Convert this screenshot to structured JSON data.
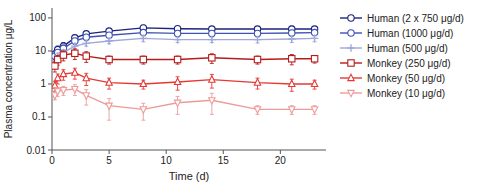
{
  "chart_data": {
    "type": "line",
    "x_label": "Time (d)",
    "y_label": "Plasma concentration μg/L",
    "x": [
      0.25,
      0.5,
      1,
      2,
      3,
      5,
      8,
      11,
      14,
      18,
      21,
      23
    ],
    "series": [
      {
        "name": "Human (2 x 750 μg/d)",
        "color": "#1a237e",
        "marker": "circle",
        "values": [
          8.0,
          11.0,
          14.0,
          25.0,
          33.0,
          40.0,
          50.0,
          47.0,
          46.0,
          46.0,
          46.0,
          46.0
        ],
        "error_lo": [
          2.0,
          3.0,
          4.0,
          5.0,
          6.0,
          7.0,
          10.0,
          8.0,
          8.0,
          9.0,
          10.0,
          9.0
        ],
        "error_hi": [
          2.0,
          3.0,
          4.0,
          5.0,
          6.0,
          7.0,
          10.0,
          8.0,
          8.0,
          9.0,
          10.0,
          9.0
        ]
      },
      {
        "name": "Human (1000 μg/d)",
        "color": "#3f51b5",
        "marker": "circle",
        "values": [
          7.0,
          9.0,
          12.0,
          20.0,
          26.0,
          30.0,
          36.0,
          34.0,
          34.0,
          34.0,
          35.0,
          36.0
        ],
        "error_lo": [
          1.5,
          2.0,
          3.0,
          4.0,
          5.0,
          6.0,
          7.0,
          6.0,
          6.0,
          7.0,
          7.0,
          7.0
        ],
        "error_hi": [
          1.5,
          2.0,
          3.0,
          4.0,
          5.0,
          6.0,
          7.0,
          6.0,
          6.0,
          7.0,
          7.0,
          7.0
        ]
      },
      {
        "name": "Human (500 μg/d)",
        "color": "#9fa8da",
        "marker": "plus",
        "values": [
          5.0,
          7.0,
          9.0,
          14.0,
          17.0,
          20.0,
          24.0,
          22.0,
          22.0,
          22.0,
          23.0,
          24.0
        ],
        "error_lo": [
          1.0,
          1.5,
          2.0,
          2.5,
          3.0,
          3.5,
          5.0,
          4.0,
          4.0,
          4.5,
          5.0,
          5.0
        ],
        "error_hi": [
          1.0,
          1.5,
          2.0,
          2.5,
          3.0,
          3.5,
          5.0,
          4.0,
          4.0,
          4.5,
          5.0,
          5.0
        ]
      },
      {
        "name": "Monkey (250 μg/d)",
        "color": "#b71c1c",
        "marker": "square",
        "values": [
          3.5,
          5.5,
          7.5,
          8.5,
          7.0,
          5.5,
          5.5,
          5.5,
          6.2,
          5.5,
          5.8,
          5.8
        ],
        "error_lo": [
          1.2,
          1.8,
          2.5,
          3.0,
          2.5,
          1.5,
          1.5,
          1.5,
          2.0,
          1.5,
          2.0,
          1.5
        ],
        "error_hi": [
          1.2,
          1.8,
          2.5,
          3.0,
          2.5,
          1.5,
          1.5,
          1.5,
          2.0,
          1.5,
          2.0,
          1.5
        ]
      },
      {
        "name": "Monkey (50 μg/d)",
        "color": "#e53935",
        "marker": "triangle-up",
        "values": [
          0.9,
          1.5,
          2.0,
          2.2,
          1.5,
          1.1,
          1.0,
          1.15,
          1.35,
          1.1,
          1.0,
          1.0
        ],
        "error_lo": [
          0.3,
          0.5,
          0.7,
          0.8,
          0.6,
          0.4,
          0.3,
          0.5,
          0.6,
          0.4,
          0.4,
          0.3
        ],
        "error_hi": [
          0.3,
          0.5,
          0.7,
          0.8,
          0.6,
          0.4,
          0.3,
          0.5,
          0.6,
          0.4,
          0.4,
          0.3
        ]
      },
      {
        "name": "Monkey (10 μg/d)",
        "color": "#ef9a9a",
        "marker": "triangle-down",
        "values": [
          0.45,
          0.6,
          0.65,
          0.7,
          0.45,
          0.22,
          0.17,
          0.27,
          0.32,
          0.17,
          0.17,
          0.17
        ],
        "error_lo": [
          0.12,
          0.18,
          0.2,
          0.25,
          0.22,
          0.14,
          0.09,
          0.15,
          0.2,
          0.05,
          0.05,
          0.05
        ],
        "error_hi": [
          0.12,
          0.18,
          0.2,
          0.25,
          0.22,
          0.14,
          0.09,
          0.15,
          0.2,
          0.05,
          0.05,
          0.05
        ]
      }
    ],
    "xlim": [
      0,
      24
    ],
    "ylim": [
      0.01,
      200
    ],
    "xticks": [
      0,
      5,
      10,
      15,
      20
    ],
    "yticks": [
      0.01,
      0.1,
      1,
      10,
      100
    ],
    "log": "y",
    "grid": false,
    "legend": "right"
  }
}
